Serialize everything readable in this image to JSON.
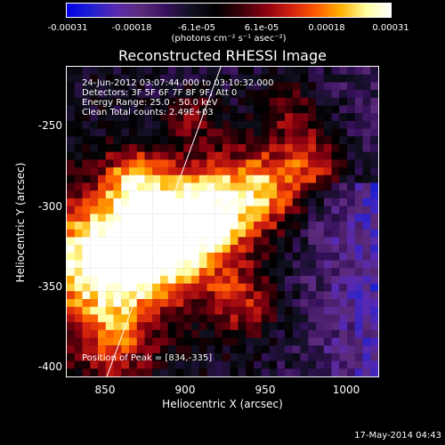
{
  "colorbar": {
    "tick_labels": [
      "-0.00031",
      "-0.00018",
      "-6.1e-05",
      "6.1e-05",
      "0.00018",
      "0.00031"
    ],
    "unit_label": "(photons cm⁻² s⁻¹ asec⁻²)",
    "colors": [
      "#0000e6",
      "#2020d0",
      "#5a2ab0",
      "#5b2a78",
      "#35105a",
      "#101020",
      "#000000",
      "#3a0008",
      "#8a0010",
      "#d02010",
      "#ff5a00",
      "#ffb000",
      "#ffffa0",
      "#ffffff"
    ]
  },
  "plot": {
    "title": "Reconstructed RHESSI Image",
    "info_lines": [
      "24-Jun-2012 03:07:44.000 to 03:10:32.000",
      "Detectors: 3F 5F 6F 7F 8F 9F, Att 0",
      "Energy Range: 25.0 - 50.0 keV",
      "Clean    Total counts: 2.49E+03"
    ],
    "peak_label": "Position of Peak = [834,-335]",
    "xlabel": "Heliocentric X (arcsec)",
    "ylabel": "Heliocentric Y (arcsec)",
    "xticks": [
      "850",
      "900",
      "950",
      "1000"
    ],
    "yticks": [
      "-250",
      "-300",
      "-350",
      "-400"
    ],
    "xlim": [
      826,
      1020
    ],
    "ylim": [
      -407,
      -215
    ],
    "limb_line": {
      "x1": 922,
      "y1": -215,
      "x2": 851,
      "y2": -407
    }
  },
  "footer": {
    "timestamp": "17-May-2014 04:43"
  }
}
